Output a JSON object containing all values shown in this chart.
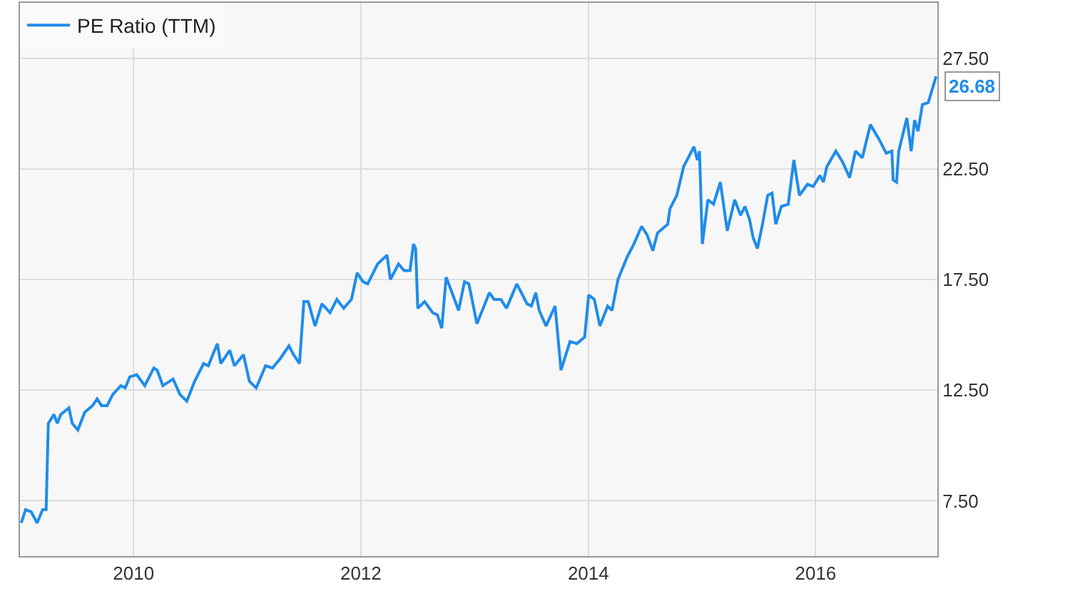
{
  "chart_data": {
    "type": "line",
    "legend": "top left",
    "grid": true,
    "marker": "none",
    "line_style": "solid",
    "xlim": [
      "2009-01-01",
      "2017-01-26"
    ],
    "xticks": [
      {
        "value": "2010-01-01",
        "label": "2010"
      },
      {
        "value": "2012-01-01",
        "label": "2012"
      },
      {
        "value": "2014-01-01",
        "label": "2014"
      },
      {
        "value": "2016-01-01",
        "label": "2016"
      }
    ],
    "ylim": [
      5,
      30
    ],
    "yticks": [
      {
        "value": 7.5,
        "label": "7.50"
      },
      {
        "value": 12.5,
        "label": "12.50"
      },
      {
        "value": 17.5,
        "label": "17.50"
      },
      {
        "value": 22.5,
        "label": "22.50"
      },
      {
        "value": 27.5,
        "label": "27.50"
      }
    ],
    "annotations": [
      {
        "text": "26.68",
        "x": "2017-01-22",
        "y": 26.68
      }
    ],
    "series": [
      {
        "name": "PE Ratio (TTM)",
        "color": "#1f8ceb",
        "x": [
          "2009-01-05",
          "2009-01-19",
          "2009-02-06",
          "2009-02-25",
          "2009-03-15",
          "2009-03-26",
          "2009-04-02",
          "2009-04-20",
          "2009-05-01",
          "2009-05-12",
          "2009-06-07",
          "2009-06-18",
          "2009-07-06",
          "2009-07-28",
          "2009-08-22",
          "2009-09-06",
          "2009-09-20",
          "2009-10-08",
          "2009-10-26",
          "2009-11-21",
          "2009-12-05",
          "2009-12-20",
          "2010-01-11",
          "2010-02-06",
          "2010-03-07",
          "2010-03-18",
          "2010-04-05",
          "2010-05-08",
          "2010-05-30",
          "2010-06-21",
          "2010-07-16",
          "2010-08-14",
          "2010-08-29",
          "2010-09-27",
          "2010-10-08",
          "2010-11-06",
          "2010-11-21",
          "2010-12-20",
          "2011-01-08",
          "2011-01-30",
          "2011-03-01",
          "2011-03-23",
          "2011-04-16",
          "2011-05-15",
          "2011-05-30",
          "2011-06-18",
          "2011-07-02",
          "2011-07-16",
          "2011-08-07",
          "2011-08-29",
          "2011-09-24",
          "2011-10-16",
          "2011-11-07",
          "2011-12-02",
          "2011-12-20",
          "2012-01-08",
          "2012-01-23",
          "2012-02-24",
          "2012-03-25",
          "2012-04-05",
          "2012-05-01",
          "2012-05-19",
          "2012-06-07",
          "2012-06-18",
          "2012-06-25",
          "2012-07-02",
          "2012-07-24",
          "2012-08-19",
          "2012-09-03",
          "2012-09-17",
          "2012-10-01",
          "2012-10-12",
          "2012-11-10",
          "2012-11-29",
          "2012-12-13",
          "2013-01-08",
          "2013-02-17",
          "2013-03-04",
          "2013-03-26",
          "2013-04-13",
          "2013-05-16",
          "2013-06-18",
          "2013-07-02",
          "2013-07-16",
          "2013-07-27",
          "2013-08-18",
          "2013-09-16",
          "2013-10-05",
          "2013-11-03",
          "2013-11-25",
          "2013-12-20",
          "2014-01-02",
          "2014-01-20",
          "2014-02-07",
          "2014-03-04",
          "2014-03-18",
          "2014-04-06",
          "2014-05-05",
          "2014-05-27",
          "2014-06-21",
          "2014-07-09",
          "2014-07-27",
          "2014-08-11",
          "2014-09-13",
          "2014-09-20",
          "2014-10-12",
          "2014-11-03",
          "2014-11-29",
          "2014-12-06",
          "2014-12-17",
          "2014-12-24",
          "2015-01-02",
          "2015-01-20",
          "2015-02-07",
          "2015-03-01",
          "2015-03-23",
          "2015-04-16",
          "2015-05-05",
          "2015-05-19",
          "2015-06-03",
          "2015-06-14",
          "2015-06-28",
          "2015-07-13",
          "2015-07-31",
          "2015-08-14",
          "2015-08-26",
          "2015-09-13",
          "2015-10-05",
          "2015-10-23",
          "2015-11-10",
          "2015-12-06",
          "2015-12-24",
          "2016-01-15",
          "2016-01-26",
          "2016-02-06",
          "2016-03-06",
          "2016-03-28",
          "2016-04-19",
          "2016-05-08",
          "2016-05-30",
          "2016-06-25",
          "2016-07-24",
          "2016-08-15",
          "2016-09-02",
          "2016-09-06",
          "2016-09-17",
          "2016-09-24",
          "2016-10-20",
          "2016-11-03",
          "2016-11-14",
          "2016-11-25",
          "2016-12-09",
          "2016-12-28",
          "2017-01-22"
        ],
        "values": [
          6.5,
          7.1,
          7.0,
          6.5,
          7.1,
          7.1,
          11.0,
          11.4,
          11.0,
          11.4,
          11.7,
          11.0,
          10.7,
          11.5,
          11.8,
          12.1,
          11.8,
          11.8,
          12.3,
          12.7,
          12.6,
          13.1,
          13.2,
          12.7,
          13.5,
          13.4,
          12.7,
          13.0,
          12.3,
          12.0,
          12.9,
          13.7,
          13.6,
          14.6,
          13.7,
          14.3,
          13.6,
          14.1,
          12.9,
          12.6,
          13.6,
          13.5,
          13.9,
          14.5,
          14.1,
          13.7,
          16.5,
          16.5,
          15.4,
          16.4,
          16.0,
          16.6,
          16.2,
          16.6,
          17.8,
          17.4,
          17.3,
          18.2,
          18.6,
          17.5,
          18.2,
          17.9,
          17.9,
          19.1,
          18.9,
          16.2,
          16.5,
          16.0,
          15.9,
          15.3,
          17.6,
          17.2,
          16.1,
          17.4,
          17.3,
          15.5,
          16.9,
          16.6,
          16.6,
          16.2,
          17.3,
          16.4,
          16.3,
          16.9,
          16.1,
          15.4,
          16.3,
          13.4,
          14.7,
          14.6,
          14.9,
          16.8,
          16.6,
          15.4,
          16.3,
          16.1,
          17.5,
          18.5,
          19.1,
          19.9,
          19.5,
          18.8,
          19.6,
          20.0,
          20.7,
          21.3,
          22.6,
          23.3,
          23.5,
          22.9,
          23.3,
          19.1,
          21.1,
          20.9,
          21.9,
          19.7,
          21.1,
          20.4,
          20.8,
          20.2,
          19.4,
          18.9,
          19.9,
          21.3,
          21.4,
          20.0,
          20.8,
          20.9,
          22.9,
          21.3,
          21.8,
          21.7,
          22.2,
          21.9,
          22.6,
          23.3,
          22.8,
          22.1,
          23.3,
          23.0,
          24.5,
          23.8,
          23.2,
          23.3,
          22.0,
          21.9,
          23.3,
          24.8,
          23.3,
          24.7,
          24.2,
          25.4,
          25.5,
          26.68
        ]
      }
    ]
  }
}
